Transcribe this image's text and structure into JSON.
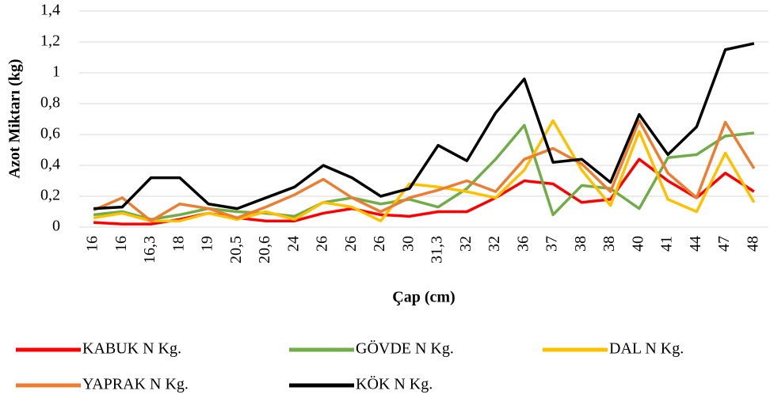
{
  "chart_data": {
    "type": "line",
    "x_label": "Çap (cm)",
    "y_label": "Azot Miktarı (kg)",
    "categories": [
      "16",
      "16",
      "16,3",
      "18",
      "19",
      "20,5",
      "20,6",
      "24",
      "26",
      "26",
      "26",
      "30",
      "31,3",
      "32",
      "32",
      "36",
      "37",
      "38",
      "38",
      "40",
      "41",
      "44",
      "47",
      "48"
    ],
    "series": [
      {
        "name": "KABUK N Kg.",
        "color": "#ff0000",
        "values": [
          0.03,
          0.02,
          0.02,
          0.05,
          0.09,
          0.06,
          0.04,
          0.04,
          0.09,
          0.12,
          0.08,
          0.07,
          0.1,
          0.1,
          0.19,
          0.3,
          0.28,
          0.16,
          0.18,
          0.44,
          0.3,
          0.19,
          0.35,
          0.23
        ]
      },
      {
        "name": "GÖVDE N Kg.",
        "color": "#70ad47",
        "values": [
          0.08,
          0.1,
          0.05,
          0.08,
          0.12,
          0.1,
          0.09,
          0.07,
          0.16,
          0.19,
          0.15,
          0.18,
          0.13,
          0.25,
          0.44,
          0.66,
          0.08,
          0.27,
          0.25,
          0.12,
          0.45,
          0.47,
          0.59,
          0.61
        ]
      },
      {
        "name": "DAL N Kg.",
        "color": "#ffc000",
        "values": [
          0.06,
          0.09,
          0.04,
          0.04,
          0.09,
          0.05,
          0.1,
          0.05,
          0.16,
          0.13,
          0.04,
          0.28,
          0.26,
          0.23,
          0.19,
          0.37,
          0.69,
          0.37,
          0.14,
          0.62,
          0.18,
          0.1,
          0.48,
          0.16
        ]
      },
      {
        "name": "YAPRAK N Kg.",
        "color": "#ed7d31",
        "values": [
          0.11,
          0.19,
          0.04,
          0.15,
          0.12,
          0.06,
          0.13,
          0.21,
          0.31,
          0.19,
          0.1,
          0.19,
          0.24,
          0.3,
          0.23,
          0.44,
          0.51,
          0.41,
          0.23,
          0.69,
          0.35,
          0.19,
          0.68,
          0.38
        ]
      },
      {
        "name": "KÖK N Kg.",
        "color": "#000000",
        "values": [
          0.12,
          0.13,
          0.32,
          0.32,
          0.15,
          0.12,
          0.19,
          0.26,
          0.4,
          0.32,
          0.2,
          0.25,
          0.53,
          0.43,
          0.74,
          0.96,
          0.42,
          0.44,
          0.29,
          0.73,
          0.47,
          0.65,
          1.15,
          1.19
        ]
      }
    ],
    "ylim": [
      0,
      1.4
    ],
    "yticks": [
      0,
      {
        "value": 0.2,
        "label": "0,2"
      },
      {
        "value": 0.4,
        "label": "0,4"
      },
      {
        "value": 0.6,
        "label": "0,6"
      },
      {
        "value": 0.8,
        "label": "0,8"
      },
      1,
      {
        "value": 1.2,
        "label": "1,2"
      },
      {
        "value": 1.4,
        "label": "1,4"
      }
    ],
    "grid": true,
    "legend": "bottom"
  }
}
